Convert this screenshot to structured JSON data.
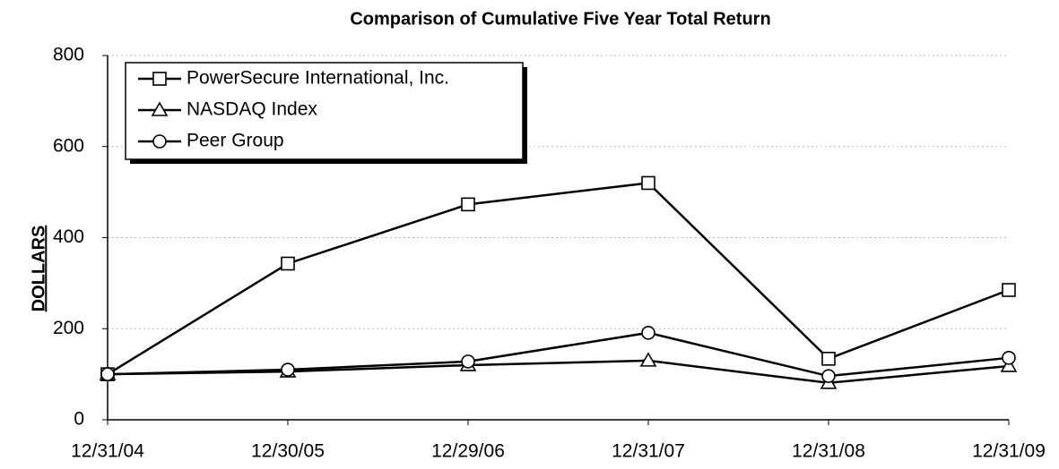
{
  "chart_data": {
    "type": "line",
    "title": "Comparison of Cumulative Five Year Total Return",
    "y_label": "DOLLARS",
    "categories": [
      "12/31/04",
      "12/30/05",
      "12/29/06",
      "12/31/07",
      "12/31/08",
      "12/31/09"
    ],
    "series": [
      {
        "name": "PowerSecure International, Inc.",
        "color": "#000000",
        "marker": "square",
        "values": [
          100,
          343,
          473,
          520,
          134,
          285
        ]
      },
      {
        "name": "NASDAQ Index",
        "color": "#000000",
        "marker": "triangle",
        "values": [
          100,
          106,
          120,
          130,
          81,
          118
        ]
      },
      {
        "name": "Peer Group",
        "color": "#000000",
        "marker": "circle",
        "values": [
          100,
          110,
          128,
          191,
          96,
          136
        ]
      }
    ],
    "ylim": [
      0,
      800
    ],
    "yticks": [
      0,
      200,
      400,
      600,
      800
    ],
    "grid": true,
    "legend": "upper left"
  }
}
